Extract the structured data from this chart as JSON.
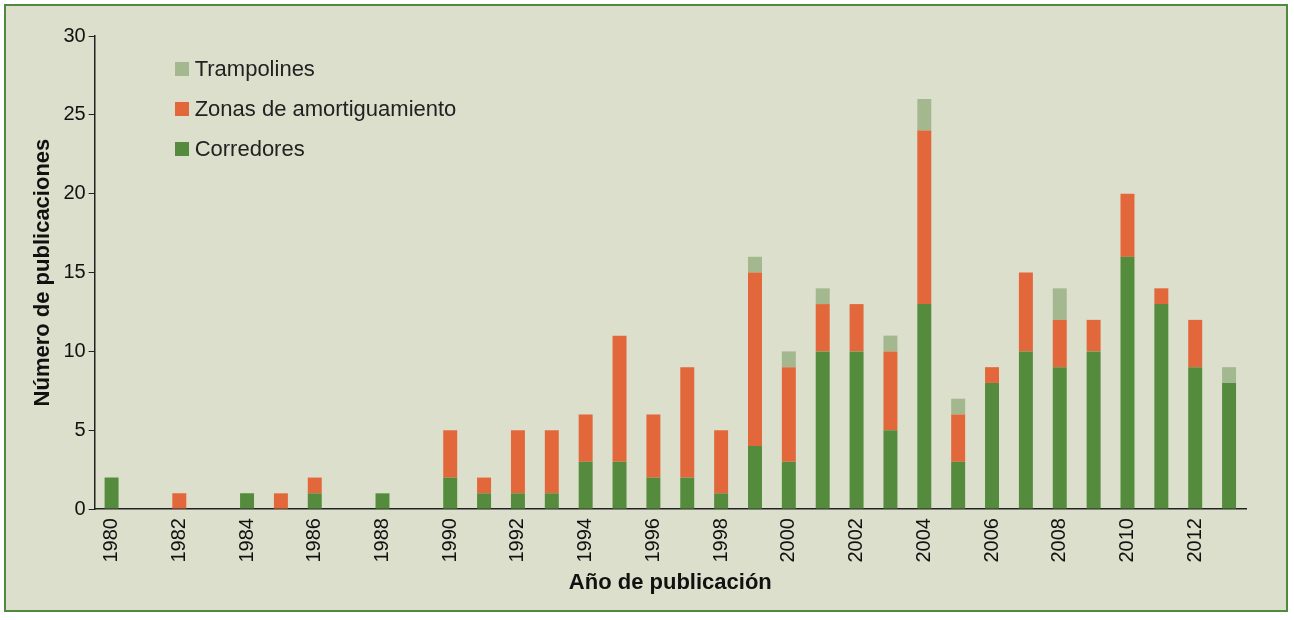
{
  "chart_data": {
    "type": "bar",
    "stacked": true,
    "xlabel": "Año de publicación",
    "ylabel": "Número de publicaciones",
    "categories": [
      "1980",
      null,
      "1982",
      null,
      "1984",
      null,
      "1986",
      null,
      "1988",
      null,
      "1990",
      null,
      "1992",
      null,
      "1994",
      null,
      "1996",
      null,
      "1998",
      null,
      "2000",
      null,
      "2002",
      null,
      "2004",
      null,
      "2006",
      null,
      "2008",
      null,
      "2010",
      null,
      "2012",
      null
    ],
    "series": [
      {
        "name": "Corredores",
        "color": "#548b3c",
        "values": [
          2,
          0,
          0,
          0,
          1,
          0,
          1,
          0,
          1,
          0,
          2,
          1,
          1,
          1,
          3,
          3,
          2,
          2,
          1,
          4,
          3,
          10,
          10,
          5,
          13,
          3,
          8,
          10,
          9,
          10,
          16,
          13,
          9,
          8
        ]
      },
      {
        "name": "Zonas de amortiguamiento",
        "color": "#e2673a",
        "values": [
          0,
          0,
          1,
          0,
          0,
          1,
          1,
          0,
          0,
          0,
          3,
          1,
          4,
          4,
          3,
          8,
          4,
          7,
          4,
          11,
          6,
          3,
          3,
          5,
          11,
          3,
          1,
          5,
          3,
          2,
          4,
          1,
          3,
          0
        ]
      },
      {
        "name": "Trampolines",
        "color": "#a3b88f",
        "values": [
          0,
          0,
          0,
          0,
          0,
          0,
          0,
          0,
          0,
          0,
          0,
          0,
          0,
          0,
          0,
          0,
          0,
          0,
          0,
          1,
          1,
          1,
          0,
          1,
          2,
          1,
          0,
          0,
          2,
          0,
          0,
          0,
          0,
          1
        ]
      }
    ],
    "ylim": [
      0,
      30
    ],
    "yticks": [
      0,
      5,
      10,
      15,
      20,
      25,
      30
    ],
    "grid": false,
    "legend": "top left"
  }
}
